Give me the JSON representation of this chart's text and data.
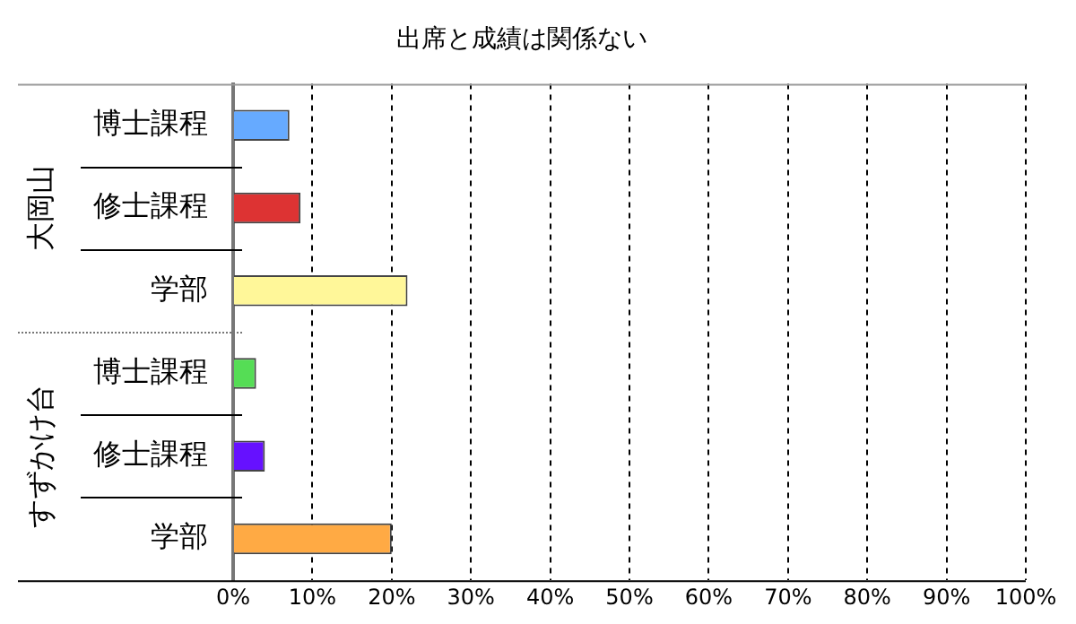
{
  "chart_data": {
    "type": "bar",
    "orientation": "horizontal",
    "title": "出席と成績は関係ない",
    "categories": [
      "博士課程",
      "修士課程",
      "学部",
      "博士課程",
      "修士課程",
      "学部"
    ],
    "values": [
      7.1,
      8.5,
      22,
      2.9,
      4,
      20
    ],
    "colors": [
      "#66aaff",
      "#dd3333",
      "#fff799",
      "#55dd55",
      "#6611ff",
      "#ffaa44"
    ],
    "xlim": [
      0,
      100
    ],
    "xticks": [
      {
        "value": 0,
        "label": "0%"
      },
      {
        "value": 10,
        "label": "10%"
      },
      {
        "value": 20,
        "label": "20%"
      },
      {
        "value": 30,
        "label": "30%"
      },
      {
        "value": 40,
        "label": "40%"
      },
      {
        "value": 50,
        "label": "50%"
      },
      {
        "value": 60,
        "label": "60%"
      },
      {
        "value": 70,
        "label": "70%"
      },
      {
        "value": 80,
        "label": "80%"
      },
      {
        "value": 90,
        "label": "90%"
      },
      {
        "value": 100,
        "label": "100%"
      }
    ],
    "annotations": [
      "大岡山",
      "すずかけ台"
    ],
    "grid": "x",
    "legend": false
  }
}
